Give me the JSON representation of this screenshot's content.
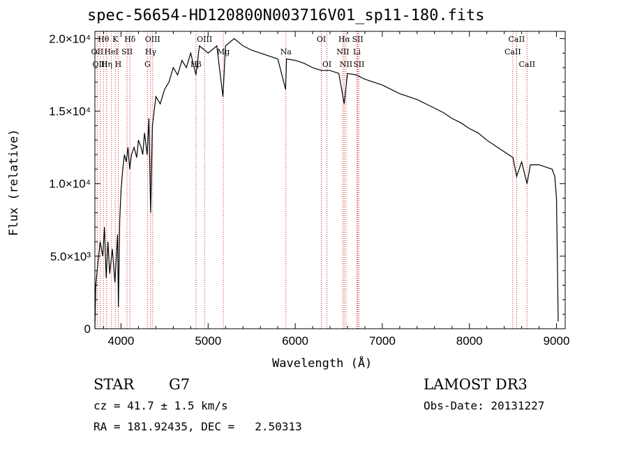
{
  "chart_data": {
    "type": "line",
    "title": "spec-56654-HD120800N003716V01_sp11-180.fits",
    "xlabel": "Wavelength (Å)",
    "ylabel": "Flux (relative)",
    "xlim": [
      3700,
      9100
    ],
    "ylim": [
      0,
      20500
    ],
    "x_ticks": [
      4000,
      5000,
      6000,
      7000,
      8000,
      9000
    ],
    "x_tick_labels": [
      "4000",
      "5000",
      "6000",
      "7000",
      "8000",
      "9000"
    ],
    "y_ticks": [
      0,
      5000,
      10000,
      15000,
      20000
    ],
    "y_tick_labels": [
      "0",
      "5.0×10³",
      "1.0×10⁴",
      "1.5×10⁴",
      "2.0×10⁴"
    ],
    "grid": false,
    "series": [
      {
        "points": [
          [
            3700,
            0
          ],
          [
            3710,
            3000
          ],
          [
            3730,
            4200
          ],
          [
            3760,
            6000
          ],
          [
            3790,
            5000
          ],
          [
            3810,
            7000
          ],
          [
            3830,
            3500
          ],
          [
            3850,
            6000
          ],
          [
            3870,
            3800
          ],
          [
            3900,
            5500
          ],
          [
            3930,
            3200
          ],
          [
            3960,
            6500
          ],
          [
            3970,
            1500
          ],
          [
            3985,
            7500
          ],
          [
            4000,
            9500
          ],
          [
            4020,
            11000
          ],
          [
            4040,
            12000
          ],
          [
            4060,
            11500
          ],
          [
            4080,
            12500
          ],
          [
            4100,
            11000
          ],
          [
            4120,
            12000
          ],
          [
            4150,
            12500
          ],
          [
            4180,
            11800
          ],
          [
            4200,
            13000
          ],
          [
            4230,
            12500
          ],
          [
            4250,
            12000
          ],
          [
            4270,
            13500
          ],
          [
            4300,
            12000
          ],
          [
            4320,
            14500
          ],
          [
            4340,
            8000
          ],
          [
            4360,
            14000
          ],
          [
            4380,
            15000
          ],
          [
            4400,
            16000
          ],
          [
            4450,
            15500
          ],
          [
            4500,
            16500
          ],
          [
            4550,
            17000
          ],
          [
            4600,
            18000
          ],
          [
            4650,
            17500
          ],
          [
            4700,
            18500
          ],
          [
            4750,
            18000
          ],
          [
            4800,
            19000
          ],
          [
            4860,
            17500
          ],
          [
            4900,
            19500
          ],
          [
            5000,
            19000
          ],
          [
            5100,
            19500
          ],
          [
            5170,
            16000
          ],
          [
            5200,
            19500
          ],
          [
            5300,
            20000
          ],
          [
            5400,
            19500
          ],
          [
            5500,
            19200
          ],
          [
            5600,
            19000
          ],
          [
            5700,
            18800
          ],
          [
            5800,
            18600
          ],
          [
            5890,
            16500
          ],
          [
            5900,
            18600
          ],
          [
            6000,
            18500
          ],
          [
            6100,
            18300
          ],
          [
            6200,
            18000
          ],
          [
            6300,
            17800
          ],
          [
            6400,
            17800
          ],
          [
            6500,
            17600
          ],
          [
            6563,
            15500
          ],
          [
            6600,
            17600
          ],
          [
            6700,
            17500
          ],
          [
            6800,
            17200
          ],
          [
            6900,
            17000
          ],
          [
            7000,
            16800
          ],
          [
            7100,
            16500
          ],
          [
            7200,
            16200
          ],
          [
            7300,
            16000
          ],
          [
            7400,
            15800
          ],
          [
            7500,
            15500
          ],
          [
            7600,
            15200
          ],
          [
            7700,
            14900
          ],
          [
            7800,
            14500
          ],
          [
            7900,
            14200
          ],
          [
            8000,
            13800
          ],
          [
            8100,
            13500
          ],
          [
            8200,
            13000
          ],
          [
            8300,
            12600
          ],
          [
            8400,
            12200
          ],
          [
            8500,
            11800
          ],
          [
            8542,
            10500
          ],
          [
            8600,
            11500
          ],
          [
            8662,
            10000
          ],
          [
            8700,
            11300
          ],
          [
            8800,
            11300
          ],
          [
            8900,
            11100
          ],
          [
            8950,
            11000
          ],
          [
            8980,
            10500
          ],
          [
            9000,
            9000
          ],
          [
            9020,
            500
          ]
        ]
      }
    ],
    "line_markers": [
      {
        "name": "Hθ",
        "wavelength": 3798,
        "row": 0
      },
      {
        "name": "OII",
        "wavelength": 3727,
        "row": 1
      },
      {
        "name": "OIII",
        "wavelength": 3760,
        "row": 2
      },
      {
        "name": "K",
        "wavelength": 3934,
        "row": 0
      },
      {
        "name": "HeI",
        "wavelength": 3889,
        "row": 1
      },
      {
        "name": "Hη",
        "wavelength": 3835,
        "row": 2
      },
      {
        "name": "H",
        "wavelength": 3968,
        "row": 2
      },
      {
        "name": "SII",
        "wavelength": 4069,
        "row": 1
      },
      {
        "name": "Hδ",
        "wavelength": 4102,
        "row": 0
      },
      {
        "name": "OIII",
        "wavelength": 4363,
        "row": 0
      },
      {
        "name": "Hγ",
        "wavelength": 4340,
        "row": 1
      },
      {
        "name": "G",
        "wavelength": 4304,
        "row": 2
      },
      {
        "name": "Hβ",
        "wavelength": 4861,
        "row": 2
      },
      {
        "name": "OIII",
        "wavelength": 4959,
        "row": 0
      },
      {
        "name": "Mg",
        "wavelength": 5175,
        "row": 1
      },
      {
        "name": "Na",
        "wavelength": 5893,
        "row": 1
      },
      {
        "name": "OI",
        "wavelength": 6300,
        "row": 0
      },
      {
        "name": "OI",
        "wavelength": 6364,
        "row": 2
      },
      {
        "name": "Hα",
        "wavelength": 6563,
        "row": 0
      },
      {
        "name": "SII",
        "wavelength": 6717,
        "row": 0
      },
      {
        "name": "NII",
        "wavelength": 6548,
        "row": 1
      },
      {
        "name": "Li",
        "wavelength": 6708,
        "row": 1
      },
      {
        "name": "NII",
        "wavelength": 6584,
        "row": 2
      },
      {
        "name": "SII",
        "wavelength": 6731,
        "row": 2
      },
      {
        "name": "CaII",
        "wavelength": 8542,
        "row": 0
      },
      {
        "name": "CaII",
        "wavelength": 8498,
        "row": 1
      },
      {
        "name": "CaII",
        "wavelength": 8662,
        "row": 2
      }
    ]
  },
  "footer": {
    "object_type": "STAR",
    "subclass": "G7",
    "redshift": "cz = 41.7 ± 1.5 km/s",
    "coords": "RA = 181.92435, DEC =   2.50313",
    "survey": "LAMOST DR3",
    "obs_date": "Obs-Date: 20131227"
  }
}
